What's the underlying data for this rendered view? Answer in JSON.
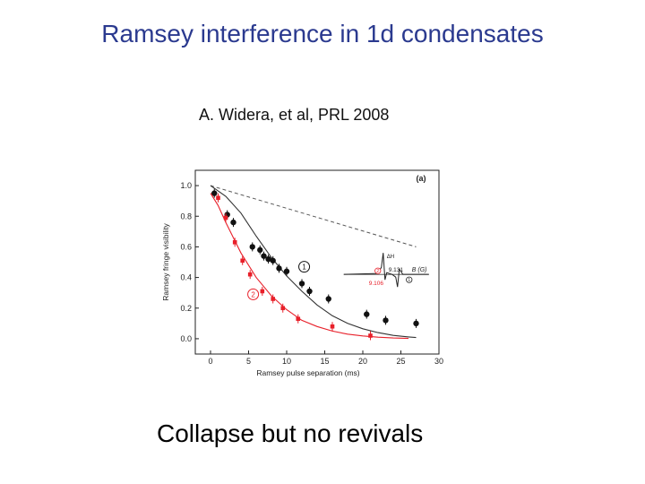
{
  "slide": {
    "title": "Ramsey interference in 1d condensates",
    "citation": "A. Widera, et al, PRL 2008",
    "caption": "Collapse but no revivals"
  },
  "colors": {
    "title": "#2b3a8f",
    "series_black": "#111111",
    "series_red": "#e8202a",
    "dashed": "#555555"
  },
  "chart_data": {
    "type": "scatter",
    "panel_label": "(a)",
    "xlabel": "Ramsey pulse separation (ms)",
    "ylabel": "Ramsey fringe visibility",
    "xlim": [
      -2,
      30
    ],
    "ylim": [
      -0.1,
      1.1
    ],
    "xticks": [
      0,
      5,
      10,
      15,
      20,
      25,
      30
    ],
    "yticks": [
      0.0,
      0.2,
      0.4,
      0.6,
      0.8,
      1.0
    ],
    "grid": false,
    "series": [
      {
        "name": "1",
        "color": "#111111",
        "points": [
          [
            0.5,
            0.95
          ],
          [
            2.2,
            0.81
          ],
          [
            3.0,
            0.76
          ],
          [
            5.5,
            0.6
          ],
          [
            6.5,
            0.58
          ],
          [
            7.0,
            0.54
          ],
          [
            7.6,
            0.52
          ],
          [
            8.2,
            0.51
          ],
          [
            9.0,
            0.46
          ],
          [
            10.0,
            0.44
          ],
          [
            12.0,
            0.36
          ],
          [
            13.0,
            0.31
          ],
          [
            15.5,
            0.26
          ],
          [
            20.5,
            0.16
          ],
          [
            23.0,
            0.12
          ],
          [
            27.0,
            0.1
          ]
        ],
        "fit": [
          [
            0,
            1.0
          ],
          [
            2,
            0.93
          ],
          [
            4,
            0.82
          ],
          [
            6,
            0.67
          ],
          [
            8,
            0.53
          ],
          [
            10,
            0.41
          ],
          [
            12,
            0.31
          ],
          [
            14,
            0.22
          ],
          [
            16,
            0.15
          ],
          [
            18,
            0.1
          ],
          [
            20,
            0.065
          ],
          [
            22,
            0.04
          ],
          [
            24,
            0.022
          ],
          [
            26,
            0.012
          ],
          [
            27,
            0.008
          ]
        ]
      },
      {
        "name": "2",
        "color": "#e8202a",
        "points": [
          [
            1.0,
            0.92
          ],
          [
            2.0,
            0.79
          ],
          [
            3.2,
            0.63
          ],
          [
            4.2,
            0.51
          ],
          [
            5.2,
            0.42
          ],
          [
            6.8,
            0.31
          ],
          [
            8.2,
            0.26
          ],
          [
            9.5,
            0.2
          ],
          [
            11.5,
            0.13
          ],
          [
            16.0,
            0.08
          ],
          [
            21.0,
            0.02
          ]
        ],
        "fit": [
          [
            0,
            0.95
          ],
          [
            1,
            0.87
          ],
          [
            2,
            0.76
          ],
          [
            3,
            0.66
          ],
          [
            4,
            0.56
          ],
          [
            5,
            0.48
          ],
          [
            6,
            0.4
          ],
          [
            7,
            0.34
          ],
          [
            8,
            0.28
          ],
          [
            10,
            0.19
          ],
          [
            12,
            0.12
          ],
          [
            14,
            0.08
          ],
          [
            16,
            0.05
          ],
          [
            18,
            0.03
          ],
          [
            20,
            0.018
          ],
          [
            22,
            0.01
          ],
          [
            24,
            0.005
          ],
          [
            26,
            0.002
          ]
        ]
      }
    ],
    "dashed_envelope": [
      [
        0,
        1.0
      ],
      [
        27,
        0.6
      ]
    ],
    "inset": {
      "label_x": "B (G)",
      "ticks": [
        "9.106",
        "9.131"
      ],
      "markers": [
        "1",
        "2"
      ],
      "corner_label": "ΔH"
    }
  }
}
